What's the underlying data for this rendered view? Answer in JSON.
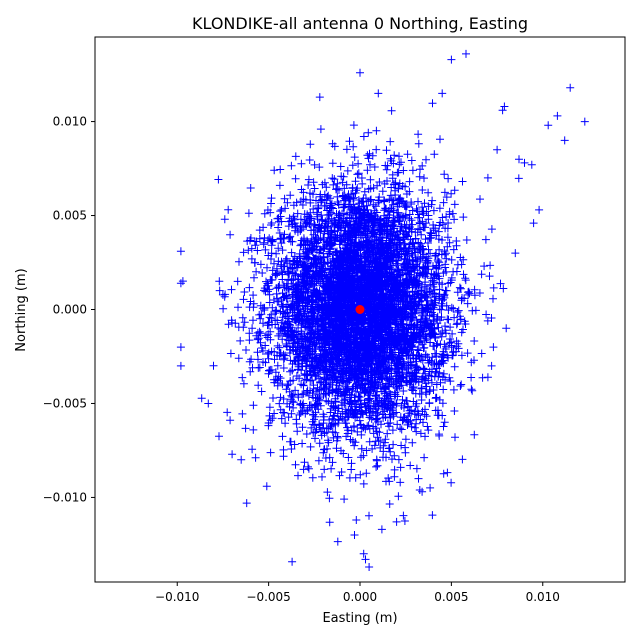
{
  "chart_data": {
    "type": "scatter",
    "title": "KLONDIKE-all antenna 0 Northing, Easting",
    "xlabel": "Easting (m)",
    "ylabel": "Northing (m)",
    "xlim": [
      -0.0145,
      0.0145
    ],
    "ylim": [
      -0.0145,
      0.0145
    ],
    "x_ticks": [
      -0.01,
      -0.005,
      0.0,
      0.005,
      0.01
    ],
    "x_tick_labels": [
      "−0.010",
      "−0.005",
      "0.000",
      "0.005",
      "0.010"
    ],
    "y_ticks": [
      -0.01,
      -0.005,
      0.0,
      0.005,
      0.01
    ],
    "y_tick_labels": [
      "−0.010",
      "−0.005",
      "0.000",
      "0.005",
      "0.010"
    ],
    "grid": false,
    "series": [
      {
        "marker": "plus",
        "color": "#0000ff",
        "center": [
          0.0,
          0.0
        ],
        "std_easting": 0.0024,
        "std_northing": 0.0032,
        "point_count": 6000,
        "outliers": [
          {
            "x": 0.0115,
            "y": 0.0118
          },
          {
            "x": 0.0123,
            "y": 0.01
          },
          {
            "x": 0.0058,
            "y": 0.0136
          },
          {
            "x": 0.005,
            "y": 0.0133
          },
          {
            "x": 0.0108,
            "y": 0.0103
          },
          {
            "x": 0.0103,
            "y": 0.0098
          },
          {
            "x": 0.0112,
            "y": 0.009
          },
          {
            "x": 0.0098,
            "y": 0.0053
          },
          {
            "x": 0.0095,
            "y": 0.0046
          },
          {
            "x": 0.0087,
            "y": 0.008
          },
          {
            "x": 0.0085,
            "y": 0.003
          },
          {
            "x": 0.008,
            "y": -0.001
          },
          {
            "x": -0.0098,
            "y": 0.0031
          },
          {
            "x": -0.0098,
            "y": 0.0014
          },
          {
            "x": -0.0098,
            "y": -0.002
          },
          {
            "x": -0.0098,
            "y": -0.003
          },
          {
            "x": -0.0083,
            "y": -0.005
          },
          {
            "x": -0.0074,
            "y": 0.0048
          },
          {
            "x": -0.0062,
            "y": -0.0103
          },
          {
            "x": -0.0051,
            "y": -0.0094
          },
          {
            "x": 0.0,
            "y": 0.0126
          },
          {
            "x": -0.0022,
            "y": 0.0113
          },
          {
            "x": 0.001,
            "y": 0.0115
          },
          {
            "x": 0.0045,
            "y": 0.0115
          },
          {
            "x": -0.0003,
            "y": -0.012
          },
          {
            "x": 0.0002,
            "y": -0.013
          },
          {
            "x": 0.0005,
            "y": -0.0137
          },
          {
            "x": 0.0003,
            "y": -0.0133
          },
          {
            "x": 0.0012,
            "y": -0.0117
          },
          {
            "x": -0.0002,
            "y": -0.0112
          },
          {
            "x": 0.002,
            "y": -0.0113
          },
          {
            "x": 0.0052,
            "y": -0.0068
          },
          {
            "x": 0.007,
            "y": -0.0036
          },
          {
            "x": 0.0072,
            "y": -0.003
          },
          {
            "x": 0.0073,
            "y": -0.002
          },
          {
            "x": 0.007,
            "y": 0.007
          },
          {
            "x": 0.0075,
            "y": 0.0085
          },
          {
            "x": 0.009,
            "y": 0.0078
          },
          {
            "x": 0.0094,
            "y": 0.0077
          },
          {
            "x": 0.0078,
            "y": 0.0106
          },
          {
            "x": 0.0079,
            "y": 0.0108
          },
          {
            "x": -0.0065,
            "y": -0.008
          },
          {
            "x": -0.007,
            "y": -0.0077
          },
          {
            "x": 0.0032,
            "y": -0.009
          },
          {
            "x": 0.0034,
            "y": -0.0097
          }
        ]
      },
      {
        "name": "",
        "marker": "circle",
        "color": "#ff0000",
        "points": [
          {
            "x": 0.0,
            "y": 0.0
          }
        ]
      }
    ]
  }
}
